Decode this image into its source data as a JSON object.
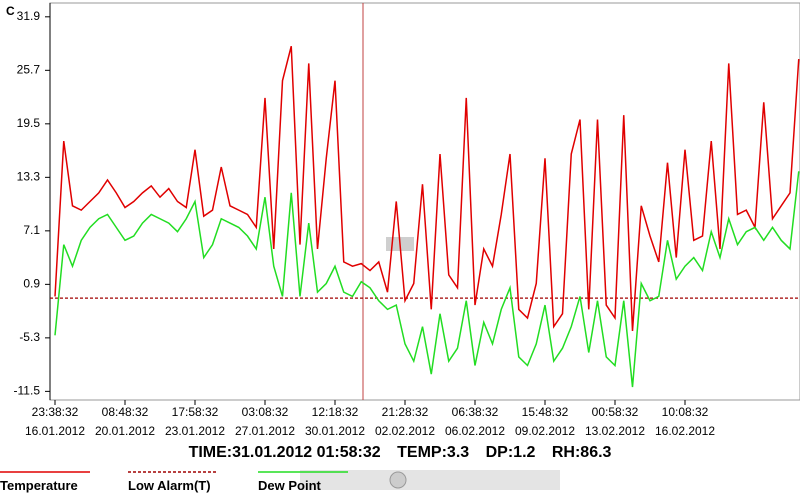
{
  "chart_data": {
    "type": "line",
    "y_label": "C",
    "ylim": [
      -12.5,
      33.5
    ],
    "yticks": [
      31.9,
      25.7,
      19.5,
      13.3,
      7.1,
      0.9,
      -5.3,
      -11.5
    ],
    "grid": false,
    "categories": [
      "23:38:32 16.01.2012",
      null,
      null,
      null,
      null,
      null,
      null,
      null,
      "08:48:32 20.01.2012",
      null,
      null,
      null,
      null,
      null,
      null,
      null,
      "17:58:32 23.01.2012",
      null,
      null,
      null,
      null,
      null,
      null,
      null,
      "03:08:32 27.01.2012",
      null,
      null,
      null,
      null,
      null,
      null,
      null,
      "12:18:32 30.01.2012",
      null,
      null,
      null,
      null,
      null,
      null,
      null,
      "21:28:32 02.02.2012",
      null,
      null,
      null,
      null,
      null,
      null,
      null,
      "06:38:32 06.02.2012",
      null,
      null,
      null,
      null,
      null,
      null,
      null,
      "15:48:32 09.02.2012",
      null,
      null,
      null,
      null,
      null,
      null,
      null,
      "00:58:32 13.02.2012",
      null,
      null,
      null,
      null,
      null,
      null,
      null,
      "10:08:32 16.02.2012",
      null,
      null,
      null,
      null,
      null,
      null,
      null,
      null,
      null,
      null,
      null,
      null,
      null
    ],
    "series": [
      {
        "name": "Temperature",
        "color": "#e00000",
        "values": [
          -0.5,
          17.5,
          10.0,
          9.5,
          10.5,
          11.5,
          13.0,
          11.5,
          9.8,
          10.5,
          11.5,
          12.3,
          11.0,
          12.0,
          10.5,
          9.8,
          16.5,
          8.8,
          9.5,
          14.5,
          10.0,
          9.5,
          9.0,
          7.5,
          22.5,
          5.0,
          24.5,
          28.5,
          5.5,
          26.5,
          5.0,
          15.5,
          24.5,
          3.5,
          3.0,
          3.3,
          2.5,
          3.5,
          0.0,
          10.5,
          -1.0,
          1.0,
          12.5,
          -2.0,
          16.0,
          2.0,
          0.5,
          22.5,
          -1.5,
          5.0,
          3.0,
          9.0,
          16.0,
          -2.0,
          -3.0,
          1.0,
          15.5,
          -4.0,
          -2.5,
          16.0,
          20.0,
          -2.0,
          20.0,
          -1.5,
          -3.0,
          20.5,
          -4.5,
          10.0,
          6.5,
          3.5,
          15.0,
          4.0,
          16.5,
          6.0,
          6.5,
          17.5,
          5.0,
          26.5,
          9.0,
          9.5,
          7.5,
          22.0,
          8.5,
          10.0,
          11.5,
          27.0
        ]
      },
      {
        "name": "Dew Point",
        "color": "#22dd22",
        "values": [
          -5.0,
          5.5,
          3.0,
          6.0,
          7.5,
          8.5,
          9.0,
          7.5,
          6.0,
          6.5,
          8.0,
          9.0,
          8.5,
          8.0,
          7.0,
          8.5,
          10.5,
          4.0,
          5.5,
          8.5,
          8.0,
          7.5,
          6.5,
          5.0,
          11.0,
          3.0,
          -0.5,
          11.5,
          -0.5,
          8.0,
          0.0,
          1.0,
          3.0,
          0.0,
          -0.5,
          1.2,
          0.5,
          -1.0,
          -2.0,
          -1.5,
          -6.0,
          -8.0,
          -4.0,
          -9.5,
          -2.5,
          -8.0,
          -6.5,
          -1.0,
          -8.5,
          -3.5,
          -6.0,
          -2.0,
          0.5,
          -7.5,
          -8.5,
          -6.0,
          -1.5,
          -8.0,
          -6.5,
          -4.0,
          -0.5,
          -7.0,
          -1.0,
          -7.5,
          -8.5,
          -1.0,
          -11.0,
          1.0,
          -1.0,
          -0.5,
          6.0,
          1.5,
          3.0,
          4.0,
          2.5,
          7.0,
          4.0,
          8.5,
          5.5,
          7.0,
          7.5,
          6.0,
          7.5,
          6.0,
          5.0,
          14.0
        ]
      }
    ],
    "thresholds": [
      {
        "name": "Low Alarm(T)",
        "color": "#a00000",
        "value": -0.7
      }
    ],
    "readout": {
      "time": "TIME:31.01.2012 01:58:32",
      "temp": "TEMP:3.3",
      "dp": "DP:1.2",
      "rh": "RH:86.3"
    }
  }
}
